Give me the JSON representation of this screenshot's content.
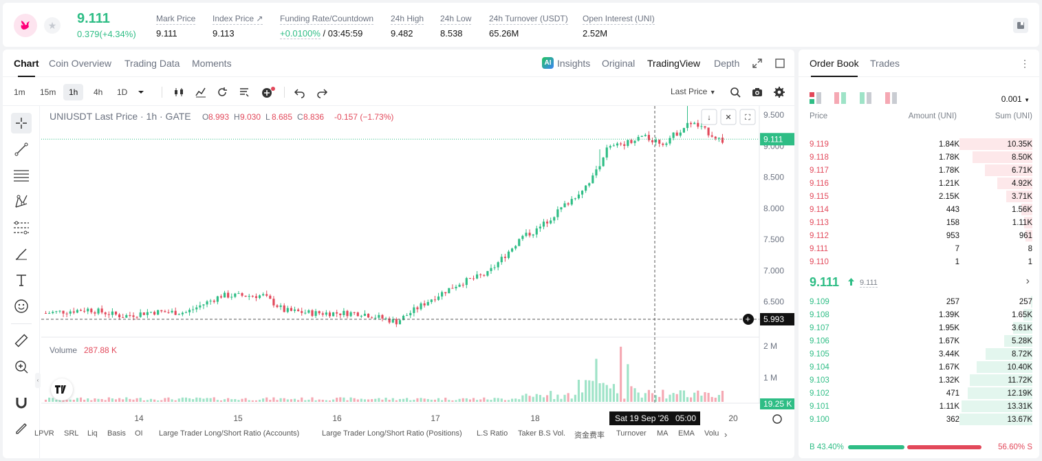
{
  "header": {
    "last_price": "9.111",
    "change": "0.379(+4.34%)",
    "stats": [
      {
        "label": "Mark Price",
        "value": "9.111"
      },
      {
        "label": "Index Price ↗",
        "value": "9.113"
      },
      {
        "label": "Funding Rate/Countdown",
        "value_green": "+0.0100%",
        "value": " / 03:45:59"
      },
      {
        "label": "24h High",
        "value": "9.482"
      },
      {
        "label": "24h Low",
        "value": "8.538"
      },
      {
        "label": "24h Turnover (USDT)",
        "value": "65.26M"
      },
      {
        "label": "Open Interest (UNI)",
        "value": "2.52M"
      }
    ]
  },
  "chart_tabs": [
    "Chart",
    "Coin Overview",
    "Trading Data",
    "Moments"
  ],
  "view_tabs": [
    "Insights",
    "Original",
    "TradingView",
    "Depth"
  ],
  "timeframes": [
    "1m",
    "15m",
    "1h",
    "4h",
    "1D"
  ],
  "price_type": "Last Price",
  "legend": {
    "symbol": "UNIUSDT Last Price · 1h · GATE",
    "o_label": "O",
    "o": "8.993",
    "h_label": "H",
    "h": "9.030",
    "l_label": "L",
    "l": "8.685",
    "c_label": "C",
    "c": "8.836",
    "chg": "-0.157 (−1.73%)",
    "volume_label": "Volume",
    "volume_value": "287.88 K"
  },
  "crosshair": {
    "price": "5.993",
    "time": "Sat 19 Sep '26",
    "time2": "05:00"
  },
  "last_price_tag": "9.111",
  "volume_tag": "19.25 K",
  "bottom_indicators": [
    "LPVR",
    "SRL",
    "Liq",
    "Basis",
    "OI",
    "Large Trader Long/Short Ratio (Accounts)",
    "Large Trader Long/Short Ratio (Positions)",
    "L.S Ratio",
    "Taker B.S Vol.",
    "资金费率",
    "Turnover",
    "MA",
    "EMA",
    "Volu"
  ],
  "chart_data": {
    "type": "candlestick",
    "symbol": "UNIUSDT",
    "interval": "1h",
    "price_axis": [
      "9.500",
      "9.000",
      "8.500",
      "8.000",
      "7.500",
      "7.000",
      "6.500"
    ],
    "volume_axis": [
      "2 M",
      "1 M"
    ],
    "x_ticks": [
      "14",
      "15",
      "16",
      "17",
      "18",
      "20"
    ],
    "ylim": [
      6.0,
      9.6
    ],
    "volume_max": 2.2
  },
  "orderbook": {
    "tabs": [
      "Order Book",
      "Trades"
    ],
    "tick": "0.001",
    "headers": [
      "Price",
      "Amount (UNI)",
      "Sum (UNI)"
    ],
    "asks": [
      {
        "price": "9.119",
        "amount": "1.84K",
        "sum": "10.35K",
        "depth": 1.0
      },
      {
        "price": "9.118",
        "amount": "1.78K",
        "sum": "8.50K",
        "depth": 0.82
      },
      {
        "price": "9.117",
        "amount": "1.78K",
        "sum": "6.71K",
        "depth": 0.65
      },
      {
        "price": "9.116",
        "amount": "1.21K",
        "sum": "4.92K",
        "depth": 0.48
      },
      {
        "price": "9.115",
        "amount": "2.15K",
        "sum": "3.71K",
        "depth": 0.36
      },
      {
        "price": "9.114",
        "amount": "443",
        "sum": "1.56K",
        "depth": 0.15
      },
      {
        "price": "9.113",
        "amount": "158",
        "sum": "1.11K",
        "depth": 0.11
      },
      {
        "price": "9.112",
        "amount": "953",
        "sum": "961",
        "depth": 0.09
      },
      {
        "price": "9.111",
        "amount": "7",
        "sum": "8",
        "depth": 0.0
      },
      {
        "price": "9.110",
        "amount": "1",
        "sum": "1",
        "depth": 0.0
      }
    ],
    "mid_price": "9.111",
    "mid_mark": "9.111",
    "bids": [
      {
        "price": "9.109",
        "amount": "257",
        "sum": "257",
        "depth": 0.02
      },
      {
        "price": "9.108",
        "amount": "1.39K",
        "sum": "1.65K",
        "depth": 0.12
      },
      {
        "price": "9.107",
        "amount": "1.95K",
        "sum": "3.61K",
        "depth": 0.26
      },
      {
        "price": "9.106",
        "amount": "1.67K",
        "sum": "5.28K",
        "depth": 0.39
      },
      {
        "price": "9.105",
        "amount": "3.44K",
        "sum": "8.72K",
        "depth": 0.64
      },
      {
        "price": "9.104",
        "amount": "1.67K",
        "sum": "10.40K",
        "depth": 0.76
      },
      {
        "price": "9.103",
        "amount": "1.32K",
        "sum": "11.72K",
        "depth": 0.86
      },
      {
        "price": "9.102",
        "amount": "471",
        "sum": "12.19K",
        "depth": 0.89
      },
      {
        "price": "9.101",
        "amount": "1.11K",
        "sum": "13.31K",
        "depth": 0.97
      },
      {
        "price": "9.100",
        "amount": "362",
        "sum": "13.67K",
        "depth": 1.0
      }
    ],
    "buy_label": "B",
    "buy_pct": "43.40%",
    "sell_label": "S",
    "sell_pct": "56.60%",
    "buy_ratio": 0.434
  },
  "colors": {
    "up": "#2ebd85",
    "down": "#e2485a",
    "up_vol": "#9ee3c7",
    "down_vol": "#f5a8b3"
  }
}
